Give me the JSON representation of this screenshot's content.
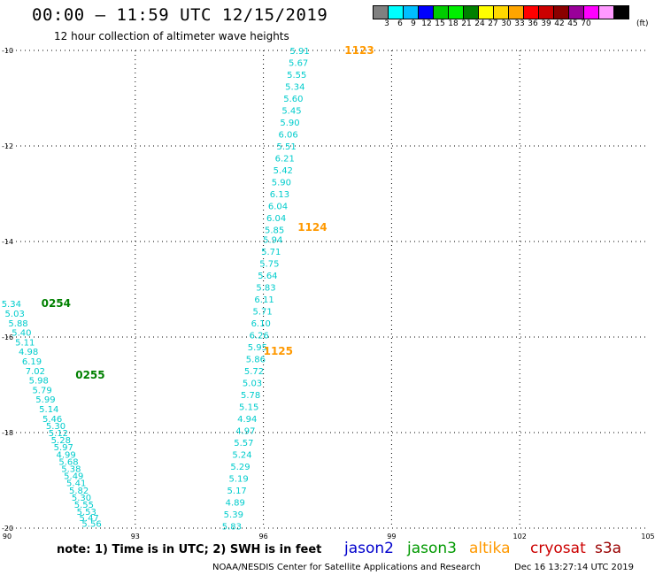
{
  "header": {
    "title": "00:00 — 11:59 UTC 12/15/2019",
    "subtitle": "12 hour collection of altimeter wave heights"
  },
  "colorbar": {
    "colors": [
      "#808080",
      "#00ffff",
      "#00bfff",
      "#0000ff",
      "#00cc00",
      "#00ee00",
      "#008000",
      "#ffff00",
      "#ffd700",
      "#ffa500",
      "#ff0000",
      "#cc0000",
      "#8b0000",
      "#990099",
      "#ff00ff",
      "#ff99ff",
      "#000000"
    ],
    "labels": [
      "3",
      "6",
      "9",
      "12",
      "15",
      "18",
      "21",
      "24",
      "27",
      "30",
      "33",
      "36",
      "39",
      "42",
      "45",
      "70"
    ],
    "unit": "(ft)"
  },
  "map_data": {
    "lon_ticks": [
      "90",
      "93",
      "96",
      "99",
      "102",
      "105"
    ],
    "lat_ticks": [
      "-10",
      "-12",
      "-14",
      "-16",
      "-18",
      "-20"
    ],
    "lon_range": [
      90,
      105
    ],
    "lat_range": [
      -20,
      -10
    ],
    "grid": true,
    "pass_labels": [
      {
        "text": "1123",
        "color": "#ff9900",
        "lon": 97.9,
        "lat": -10.0
      },
      {
        "text": "1124",
        "color": "#ff9900",
        "lon": 96.8,
        "lat": -13.7
      },
      {
        "text": "1125",
        "color": "#ff9900",
        "lon": 96.0,
        "lat": -16.3
      },
      {
        "text": "0254",
        "color": "#008000",
        "lon": 90.8,
        "lat": -15.3
      },
      {
        "text": "0255",
        "color": "#008000",
        "lon": 91.6,
        "lat": -16.8
      }
    ],
    "tracks": [
      {
        "name": "1123-1125",
        "color": "#00cccc",
        "points": [
          {
            "lon": 96.85,
            "lat": -10.0,
            "v": "5.91"
          },
          {
            "lon": 96.82,
            "lat": -10.25,
            "v": "5.67"
          },
          {
            "lon": 96.78,
            "lat": -10.5,
            "v": "5.55"
          },
          {
            "lon": 96.74,
            "lat": -10.75,
            "v": "5.34"
          },
          {
            "lon": 96.7,
            "lat": -11.0,
            "v": "5.60"
          },
          {
            "lon": 96.66,
            "lat": -11.25,
            "v": "5.45"
          },
          {
            "lon": 96.62,
            "lat": -11.5,
            "v": "5.90"
          },
          {
            "lon": 96.58,
            "lat": -11.75,
            "v": "6.06"
          },
          {
            "lon": 96.54,
            "lat": -12.0,
            "v": "5.51"
          },
          {
            "lon": 96.5,
            "lat": -12.25,
            "v": "6.21"
          },
          {
            "lon": 96.46,
            "lat": -12.5,
            "v": "5.42"
          },
          {
            "lon": 96.42,
            "lat": -12.75,
            "v": "5.90"
          },
          {
            "lon": 96.38,
            "lat": -13.0,
            "v": "6.13"
          },
          {
            "lon": 96.34,
            "lat": -13.25,
            "v": "6.04"
          },
          {
            "lon": 96.3,
            "lat": -13.5,
            "v": "6.04"
          },
          {
            "lon": 96.26,
            "lat": -13.75,
            "v": "5.85"
          },
          {
            "lon": 96.22,
            "lat": -13.95,
            "v": "5.94"
          },
          {
            "lon": 96.18,
            "lat": -14.2,
            "v": "5.71"
          },
          {
            "lon": 96.14,
            "lat": -14.45,
            "v": "5.75"
          },
          {
            "lon": 96.1,
            "lat": -14.7,
            "v": "5.64"
          },
          {
            "lon": 96.06,
            "lat": -14.95,
            "v": "5.83"
          },
          {
            "lon": 96.02,
            "lat": -15.2,
            "v": "6.11"
          },
          {
            "lon": 95.98,
            "lat": -15.45,
            "v": "5.71"
          },
          {
            "lon": 95.94,
            "lat": -15.7,
            "v": "6.10"
          },
          {
            "lon": 95.9,
            "lat": -15.95,
            "v": "6.26"
          },
          {
            "lon": 95.86,
            "lat": -16.2,
            "v": "5.95"
          },
          {
            "lon": 95.82,
            "lat": -16.45,
            "v": "5.86"
          },
          {
            "lon": 95.78,
            "lat": -16.7,
            "v": "5.72"
          },
          {
            "lon": 95.74,
            "lat": -16.95,
            "v": "5.03"
          },
          {
            "lon": 95.7,
            "lat": -17.2,
            "v": "5.78"
          },
          {
            "lon": 95.66,
            "lat": -17.45,
            "v": "5.15"
          },
          {
            "lon": 95.62,
            "lat": -17.7,
            "v": "4.94"
          },
          {
            "lon": 95.58,
            "lat": -17.95,
            "v": "4.97"
          },
          {
            "lon": 95.54,
            "lat": -18.2,
            "v": "5.57"
          },
          {
            "lon": 95.5,
            "lat": -18.45,
            "v": "5.24"
          },
          {
            "lon": 95.46,
            "lat": -18.7,
            "v": "5.29"
          },
          {
            "lon": 95.42,
            "lat": -18.95,
            "v": "5.19"
          },
          {
            "lon": 95.38,
            "lat": -19.2,
            "v": "5.17"
          },
          {
            "lon": 95.34,
            "lat": -19.45,
            "v": "4.89"
          },
          {
            "lon": 95.3,
            "lat": -19.7,
            "v": "5.39"
          },
          {
            "lon": 95.26,
            "lat": -19.95,
            "v": "5.83"
          }
        ]
      },
      {
        "name": "0254-0255",
        "color": "#00cccc",
        "points": [
          {
            "lon": 90.1,
            "lat": -15.3,
            "v": "5.34"
          },
          {
            "lon": 90.18,
            "lat": -15.5,
            "v": "5.03"
          },
          {
            "lon": 90.26,
            "lat": -15.7,
            "v": "5.88"
          },
          {
            "lon": 90.34,
            "lat": -15.9,
            "v": "5.40"
          },
          {
            "lon": 90.42,
            "lat": -16.1,
            "v": "5.11"
          },
          {
            "lon": 90.5,
            "lat": -16.3,
            "v": "4.98"
          },
          {
            "lon": 90.58,
            "lat": -16.5,
            "v": "6.19"
          },
          {
            "lon": 90.66,
            "lat": -16.7,
            "v": "7.02"
          },
          {
            "lon": 90.74,
            "lat": -16.9,
            "v": "5.98"
          },
          {
            "lon": 90.82,
            "lat": -17.1,
            "v": "5.79"
          },
          {
            "lon": 90.9,
            "lat": -17.3,
            "v": "5.99"
          },
          {
            "lon": 90.98,
            "lat": -17.5,
            "v": "5.14"
          },
          {
            "lon": 91.06,
            "lat": -17.7,
            "v": "5.46"
          },
          {
            "lon": 91.14,
            "lat": -17.85,
            "v": "5.30"
          },
          {
            "lon": 91.2,
            "lat": -18.0,
            "v": "5.12"
          },
          {
            "lon": 91.26,
            "lat": -18.15,
            "v": "5.28"
          },
          {
            "lon": 91.32,
            "lat": -18.3,
            "v": "5.97"
          },
          {
            "lon": 91.38,
            "lat": -18.45,
            "v": "4.99"
          },
          {
            "lon": 91.44,
            "lat": -18.6,
            "v": "5.68"
          },
          {
            "lon": 91.5,
            "lat": -18.75,
            "v": "5.38"
          },
          {
            "lon": 91.56,
            "lat": -18.9,
            "v": "5.49"
          },
          {
            "lon": 91.62,
            "lat": -19.05,
            "v": "5.41"
          },
          {
            "lon": 91.68,
            "lat": -19.2,
            "v": "5.82"
          },
          {
            "lon": 91.74,
            "lat": -19.35,
            "v": "5.30"
          },
          {
            "lon": 91.8,
            "lat": -19.5,
            "v": "5.55"
          },
          {
            "lon": 91.86,
            "lat": -19.65,
            "v": "5.53"
          },
          {
            "lon": 91.92,
            "lat": -19.78,
            "v": "5.47"
          },
          {
            "lon": 91.98,
            "lat": -19.9,
            "v": "5.56"
          }
        ]
      }
    ]
  },
  "footer": {
    "note": "note: 1) Time is in UTC; 2) SWH is in feet",
    "legend": [
      {
        "label": "jason2",
        "color": "#0000cc"
      },
      {
        "label": "jason3",
        "color": "#009900"
      },
      {
        "label": "altika",
        "color": "#ff9900"
      },
      {
        "label": "cryosat",
        "color": "#cc0000"
      },
      {
        "label": "s3a",
        "color": "#990000"
      }
    ],
    "credit": "NOAA/NESDIS Center for Satellite Applications and Research",
    "timestamp": "Dec 16 13:27:14 UTC 2019"
  }
}
